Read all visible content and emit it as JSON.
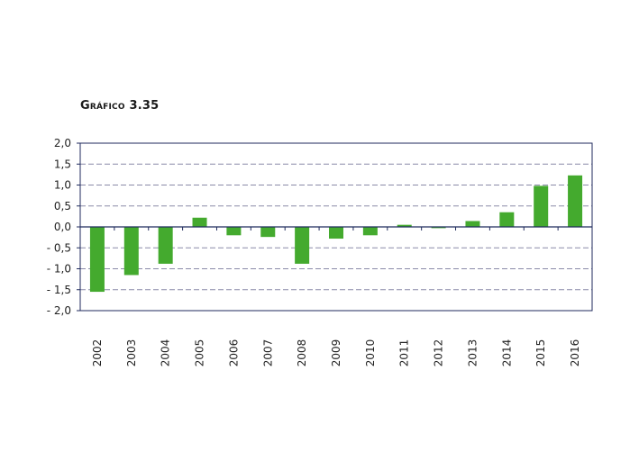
{
  "chart_data": {
    "type": "bar",
    "title": "Gráfico 3.35",
    "categories": [
      "2002",
      "2003",
      "2004",
      "2005",
      "2006",
      "2007",
      "2008",
      "2009",
      "2010",
      "2011",
      "2012",
      "2013",
      "2014",
      "2015",
      "2016"
    ],
    "values": [
      -1.55,
      -1.15,
      -0.88,
      0.22,
      -0.2,
      -0.24,
      -0.88,
      -0.28,
      -0.2,
      0.05,
      -0.03,
      0.14,
      0.35,
      0.98,
      1.23
    ],
    "ylim": [
      -2.0,
      2.0
    ],
    "yticks": [
      2.0,
      1.5,
      1.0,
      0.5,
      0.0,
      -0.5,
      -1.0,
      -1.5,
      -2.0
    ],
    "ytick_labels": [
      "2,0",
      "1,5",
      "1,0",
      "0,5",
      "0,0",
      "- 0,5",
      "- 1,0",
      "- 1,5",
      "- 2,0"
    ],
    "xlabel": "",
    "ylabel": "",
    "grid": "horizontal-dashed",
    "colors": {
      "bar": "#44aa2e",
      "frame": "#1f2a5c",
      "grid": "#8a8aa8",
      "zero_line": "#1f2a5c"
    }
  }
}
